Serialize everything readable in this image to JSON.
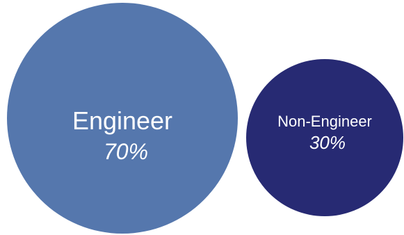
{
  "chart_data": {
    "type": "bubble",
    "title": "",
    "items": [
      {
        "label": "Engineer",
        "value_label": "70%",
        "value": 70,
        "color": "#5577AD"
      },
      {
        "label": "Non-Engineer",
        "value_label": "30%",
        "value": 30,
        "color": "#272A73"
      }
    ]
  }
}
